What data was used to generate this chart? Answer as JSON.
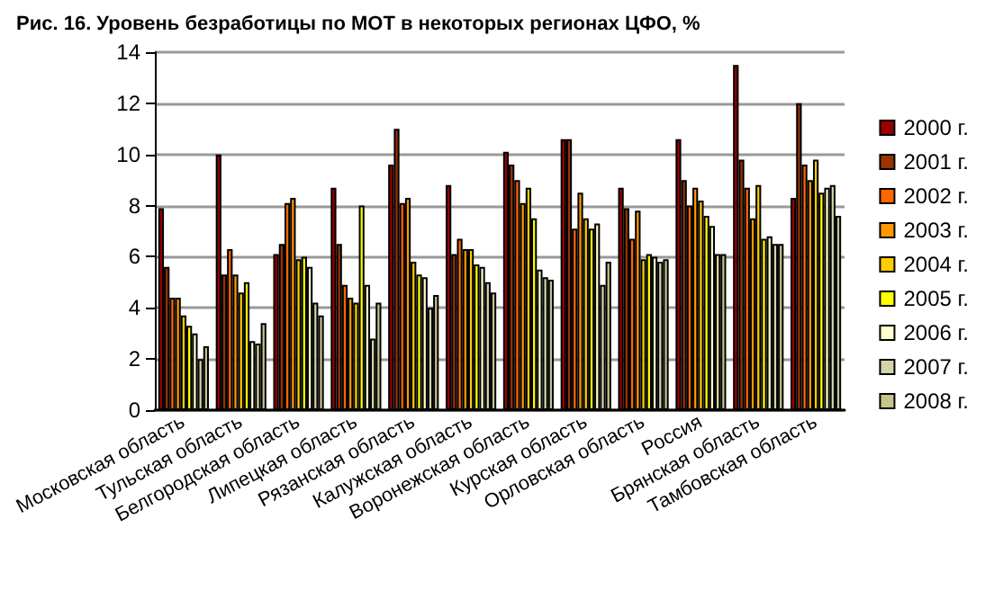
{
  "chart_data": {
    "type": "bar",
    "title": "Рис. 16. Уровень безработицы по МОТ в некоторых регионах ЦФО, %",
    "categories": [
      "Московская область",
      "Тульская область",
      "Белгородская область",
      "Липецкая область",
      "Рязанская область",
      "Калужская область",
      "Воронежская область",
      "Курская область",
      "Орловская область",
      "Россия",
      "Брянская область",
      "Тамбовская область"
    ],
    "series": [
      {
        "name": "2000 г.",
        "color": "#990000",
        "values": [
          7.9,
          10.0,
          6.1,
          8.7,
          9.6,
          8.8,
          10.1,
          10.6,
          8.7,
          10.6,
          13.5,
          8.3
        ]
      },
      {
        "name": "2001 г.",
        "color": "#993300",
        "values": [
          5.6,
          5.3,
          6.5,
          6.5,
          11.0,
          6.1,
          9.6,
          10.6,
          7.9,
          9.0,
          9.8,
          12.0
        ]
      },
      {
        "name": "2002 г.",
        "color": "#ff6600",
        "values": [
          4.4,
          6.3,
          8.1,
          4.9,
          8.1,
          6.7,
          9.0,
          7.1,
          6.7,
          8.0,
          8.7,
          9.6
        ]
      },
      {
        "name": "2003 г.",
        "color": "#ff9900",
        "values": [
          4.4,
          5.3,
          8.3,
          4.4,
          8.3,
          6.3,
          8.1,
          8.5,
          7.8,
          8.7,
          7.5,
          9.0
        ]
      },
      {
        "name": "2004 г.",
        "color": "#ffcc00",
        "values": [
          3.7,
          4.6,
          5.9,
          4.2,
          5.8,
          6.3,
          8.7,
          7.5,
          5.9,
          8.2,
          8.8,
          9.8
        ]
      },
      {
        "name": "2005 г.",
        "color": "#ffff00",
        "values": [
          3.3,
          5.0,
          6.0,
          8.0,
          5.3,
          5.7,
          7.5,
          7.1,
          6.1,
          7.6,
          6.7,
          8.5
        ]
      },
      {
        "name": "2006 г.",
        "color": "#ffffcc",
        "values": [
          3.0,
          2.7,
          5.6,
          4.9,
          5.2,
          5.6,
          5.5,
          7.3,
          6.0,
          7.2,
          6.8,
          8.7
        ]
      },
      {
        "name": "2007 г.",
        "color": "#d4d4aa",
        "values": [
          2.0,
          2.6,
          4.2,
          2.8,
          4.0,
          5.0,
          5.2,
          4.9,
          5.8,
          6.1,
          6.5,
          8.8
        ]
      },
      {
        "name": "2008 г.",
        "color": "#c4c48c",
        "values": [
          2.5,
          3.4,
          3.7,
          4.2,
          4.5,
          4.6,
          5.1,
          5.8,
          5.9,
          6.1,
          6.5,
          7.6
        ]
      }
    ],
    "ylim": [
      0,
      14
    ],
    "yticks": [
      0,
      2,
      4,
      6,
      8,
      10,
      12,
      14
    ],
    "grid": "y",
    "legend": "right"
  }
}
